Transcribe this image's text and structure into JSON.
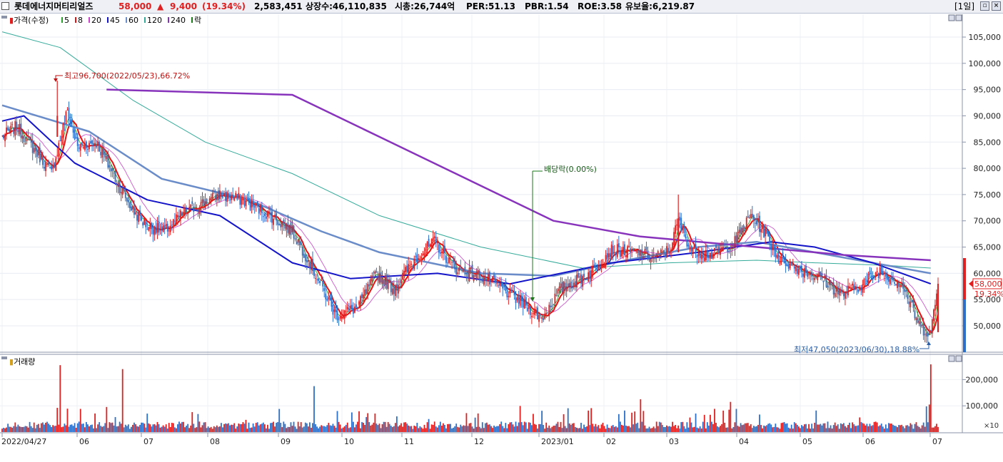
{
  "header": {
    "name": "롯데에너지머티리얼즈",
    "price": "58,000",
    "change_arrow": "▲",
    "change": "9,400",
    "change_pct": "(19.34%)",
    "volume": "2,583,451",
    "shares": "상장수:46,110,835",
    "mktcap": "시총:26,744억",
    "per": "PER:51.13",
    "pbr": "PBR:1.54",
    "roe": "ROE:3.58",
    "float": "유보율:6,219.87",
    "period": "[1일]"
  },
  "colors": {
    "up": "#e02020",
    "down": "#2b6fc9",
    "ma5": "#2ca02c",
    "ma8": "#e81010",
    "ma20": "#cc44cc",
    "ma45": "#1414c8",
    "ma60": "#6a8cc8",
    "ma120": "#33aa99",
    "ma240": "#8833bb",
    "dividend": "#1a7a1a"
  },
  "legend": {
    "price": "가격(수정)",
    "items": [
      {
        "label": "5",
        "color": "#2ca02c"
      },
      {
        "label": "8",
        "color": "#e81010"
      },
      {
        "label": "20",
        "color": "#cc44cc"
      },
      {
        "label": "45",
        "color": "#1414c8"
      },
      {
        "label": "60",
        "color": "#6a8cc8"
      },
      {
        "label": "120",
        "color": "#33aa99"
      },
      {
        "label": "240",
        "color": "#8833bb"
      },
      {
        "label": "락",
        "color": "#1a7a1a"
      }
    ],
    "volume": "거래량"
  },
  "annotations": {
    "high": "최고96,700(2022/05/23),66.72%",
    "low": "최저47,050(2023/06/30),18.88%",
    "dividend": "배당락(0.00%)",
    "last_price": "58,000",
    "last_pct": "19.34%",
    "volume_unit": "×10"
  },
  "chart_data": [
    {
      "type": "candlestick",
      "title": "",
      "x": [
        "2022/04/27",
        "06",
        "07",
        "08",
        "09",
        "10",
        "11",
        "12",
        "2023/01",
        "02",
        "03",
        "04",
        "05",
        "06",
        "07"
      ],
      "y_ticks": [
        "105,000",
        "100,000",
        "95,000",
        "90,000",
        "85,000",
        "80,000",
        "75,000",
        "70,000",
        "65,000",
        "60,000",
        "55,000",
        "50,000"
      ],
      "ylim": [
        45000,
        110000
      ],
      "ohlc_keypoints": [
        {
          "date": "2022/04/27",
          "close": 86000
        },
        {
          "date": "2022/05/23",
          "high": 96700
        },
        {
          "date": "2022/07",
          "close": 67000
        },
        {
          "date": "2022/08",
          "close": 75000
        },
        {
          "date": "2022/09",
          "close": 68000
        },
        {
          "date": "2022/10",
          "close": 51000
        },
        {
          "date": "2022/11",
          "close": 66000
        },
        {
          "date": "2022/12",
          "close": 58000
        },
        {
          "date": "2023/01",
          "close": 51000
        },
        {
          "date": "2023/02",
          "close": 64000
        },
        {
          "date": "2023/03",
          "high": 75000
        },
        {
          "date": "2023/04",
          "high": 74000
        },
        {
          "date": "2023/05",
          "close": 58000
        },
        {
          "date": "2023/06/30",
          "low": 47050
        },
        {
          "date": "2023/07",
          "close": 58000
        }
      ],
      "moving_averages": {
        "ma45": [
          [
            0,
            89000
          ],
          [
            15,
            90000
          ],
          [
            50,
            81000
          ],
          [
            100,
            74000
          ],
          [
            150,
            71000
          ],
          [
            200,
            62000
          ],
          [
            240,
            59000
          ],
          [
            300,
            60000
          ],
          [
            350,
            58000
          ],
          [
            420,
            62000
          ],
          [
            480,
            64000
          ],
          [
            530,
            66000
          ],
          [
            560,
            65000
          ],
          [
            600,
            62000
          ],
          [
            640,
            58000
          ]
        ],
        "ma60": [
          [
            0,
            92000
          ],
          [
            60,
            87000
          ],
          [
            110,
            78000
          ],
          [
            170,
            74000
          ],
          [
            220,
            68000
          ],
          [
            260,
            64000
          ],
          [
            330,
            60000
          ],
          [
            380,
            59500
          ],
          [
            430,
            62500
          ],
          [
            480,
            65000
          ],
          [
            520,
            66000
          ],
          [
            560,
            64000
          ],
          [
            600,
            62000
          ],
          [
            640,
            60000
          ]
        ],
        "ma120": [
          [
            0,
            106000
          ],
          [
            40,
            103000
          ],
          [
            90,
            93000
          ],
          [
            140,
            85000
          ],
          [
            200,
            79000
          ],
          [
            260,
            71000
          ],
          [
            330,
            65000
          ],
          [
            400,
            61000
          ],
          [
            460,
            62000
          ],
          [
            520,
            62500
          ],
          [
            560,
            62000
          ],
          [
            610,
            61500
          ],
          [
            640,
            61000
          ]
        ],
        "ma240": [
          [
            72,
            95000
          ],
          [
            200,
            94000
          ],
          [
            260,
            86000
          ],
          [
            320,
            78000
          ],
          [
            380,
            70000
          ],
          [
            440,
            67000
          ],
          [
            520,
            65000
          ],
          [
            580,
            63500
          ],
          [
            640,
            62500
          ]
        ]
      }
    },
    {
      "type": "bar",
      "title": "",
      "series_name": "거래량",
      "y_ticks": [
        "200,000",
        "100,000"
      ],
      "unit": "×10",
      "peak_days": [
        {
          "day": 40,
          "value": 255000
        },
        {
          "day": 83,
          "value": 240000
        },
        {
          "day": 215,
          "value": 175000
        },
        {
          "day": 440,
          "value": 125000
        },
        {
          "day": 502,
          "value": 115000
        },
        {
          "day": 640,
          "value": 258000
        }
      ]
    }
  ]
}
